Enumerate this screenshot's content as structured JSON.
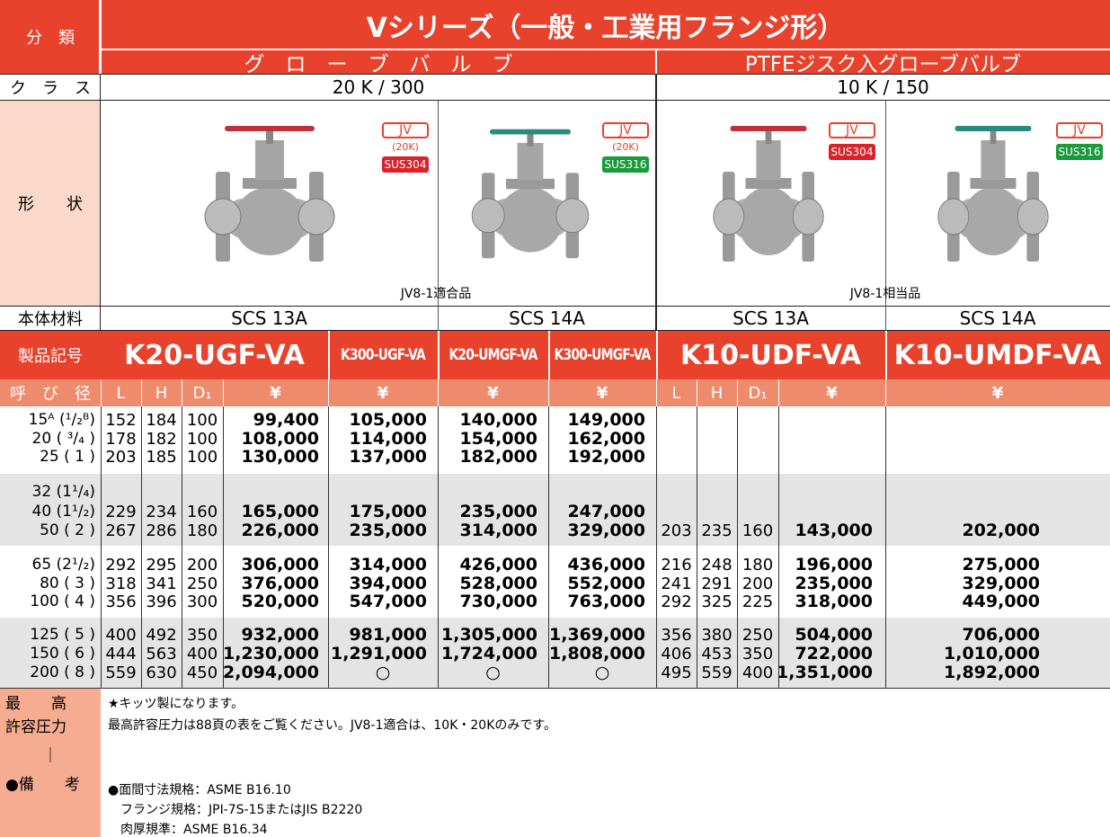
{
  "header": {
    "category_label": "分　類",
    "title": "Vシリーズ（一般・工業用フランジ形）",
    "subtitle_left": "グ　ロ　ー　ブ　バ　ル　ブ",
    "subtitle_right": "PTFEジスク入グローブバルブ"
  },
  "class": {
    "label": "ク　ラ　ス",
    "left": "20 K / 300",
    "right": "10 K / 150"
  },
  "shape": {
    "label": "形　　状",
    "images": [
      {
        "badge": "JV",
        "pressure": "(20K)",
        "material": "SUS304"
      },
      {
        "badge": "JV",
        "pressure": "(20K)",
        "material": "SUS316"
      },
      {
        "badge": "JV",
        "material": "SUS304"
      },
      {
        "badge": "JV",
        "material": "SUS316"
      }
    ],
    "note_left": "JV8-1適合品",
    "note_right": "JV8-1相当品"
  },
  "material": {
    "label": "本体材料",
    "values": [
      "SCS 13A",
      "SCS 14A",
      "SCS 13A",
      "SCS 14A"
    ]
  },
  "product": {
    "label": "製品記号",
    "codes": [
      "K20-UGF-VA",
      "K300-UGF-VA",
      "K20-UMGF-VA",
      "K300-UMGF-VA",
      "K10-UDF-VA",
      "K10-UMDF-VA"
    ]
  },
  "table": {
    "header": [
      "呼　び　径",
      "L",
      "H",
      "D₁",
      "¥",
      "¥",
      "¥",
      "¥",
      "L",
      "H",
      "D₁",
      "¥",
      "¥"
    ],
    "rows": [
      [
        "15ᴬ (¹/₂ᴮ)",
        152,
        184,
        100,
        "99,400",
        "105,000",
        "140,000",
        "149,000",
        null,
        null,
        null,
        null,
        null
      ],
      [
        "20 ( ³/₄ )",
        178,
        182,
        100,
        "108,000",
        "114,000",
        "154,000",
        "162,000",
        null,
        null,
        null,
        null,
        null
      ],
      [
        "25 ( 1 )",
        203,
        185,
        100,
        "130,000",
        "137,000",
        "182,000",
        "192,000",
        null,
        null,
        null,
        null,
        null
      ],
      [
        "32 (1¹/₄)",
        null,
        null,
        null,
        null,
        null,
        null,
        null,
        null,
        null,
        null,
        null,
        null
      ],
      [
        "40 (1¹/₂)",
        229,
        234,
        160,
        "165,000",
        "175,000",
        "235,000",
        "247,000",
        null,
        null,
        null,
        null,
        null
      ],
      [
        "50 ( 2 )",
        267,
        286,
        180,
        "226,000",
        "235,000",
        "314,000",
        "329,000",
        203,
        235,
        160,
        "143,000",
        "202,000"
      ],
      [
        "65 (2¹/₂)",
        292,
        295,
        200,
        "306,000",
        "314,000",
        "426,000",
        "436,000",
        216,
        248,
        180,
        "196,000",
        "275,000"
      ],
      [
        "80 ( 3 )",
        318,
        341,
        250,
        "376,000",
        "394,000",
        "528,000",
        "552,000",
        241,
        291,
        200,
        "235,000",
        "329,000"
      ],
      [
        "100 ( 4 )",
        356,
        396,
        300,
        "520,000",
        "547,000",
        "730,000",
        "763,000",
        292,
        325,
        225,
        "318,000",
        "449,000"
      ],
      [
        "125 ( 5 )",
        400,
        492,
        350,
        "932,000",
        "981,000",
        "1,305,000",
        "1,369,000",
        356,
        380,
        250,
        "504,000",
        "706,000"
      ],
      [
        "150 ( 6 )",
        444,
        563,
        400,
        "1,230,000",
        "1,291,000",
        "1,724,000",
        "1,808,000",
        406,
        453,
        350,
        "722,000",
        "1,010,000"
      ],
      [
        "200 ( 8 )",
        559,
        630,
        450,
        "2,094,000",
        "○",
        "○",
        "○",
        495,
        559,
        400,
        "1,351,000",
        "1,892,000"
      ]
    ]
  },
  "notes": {
    "label": [
      "最　　高",
      "許容圧力",
      "｜",
      "●備　　考"
    ],
    "lines": [
      "★キッツ製になります。",
      "最高許容圧力は88頁の表をご覧ください。JV8-1適合は、10K・20Kのみです。",
      "●面間寸法規格：ASME B16.10",
      "　フランジ規格：JPI-7S-15またはJIS B2220",
      "　肉厚規準：ASME B16.34"
    ]
  }
}
